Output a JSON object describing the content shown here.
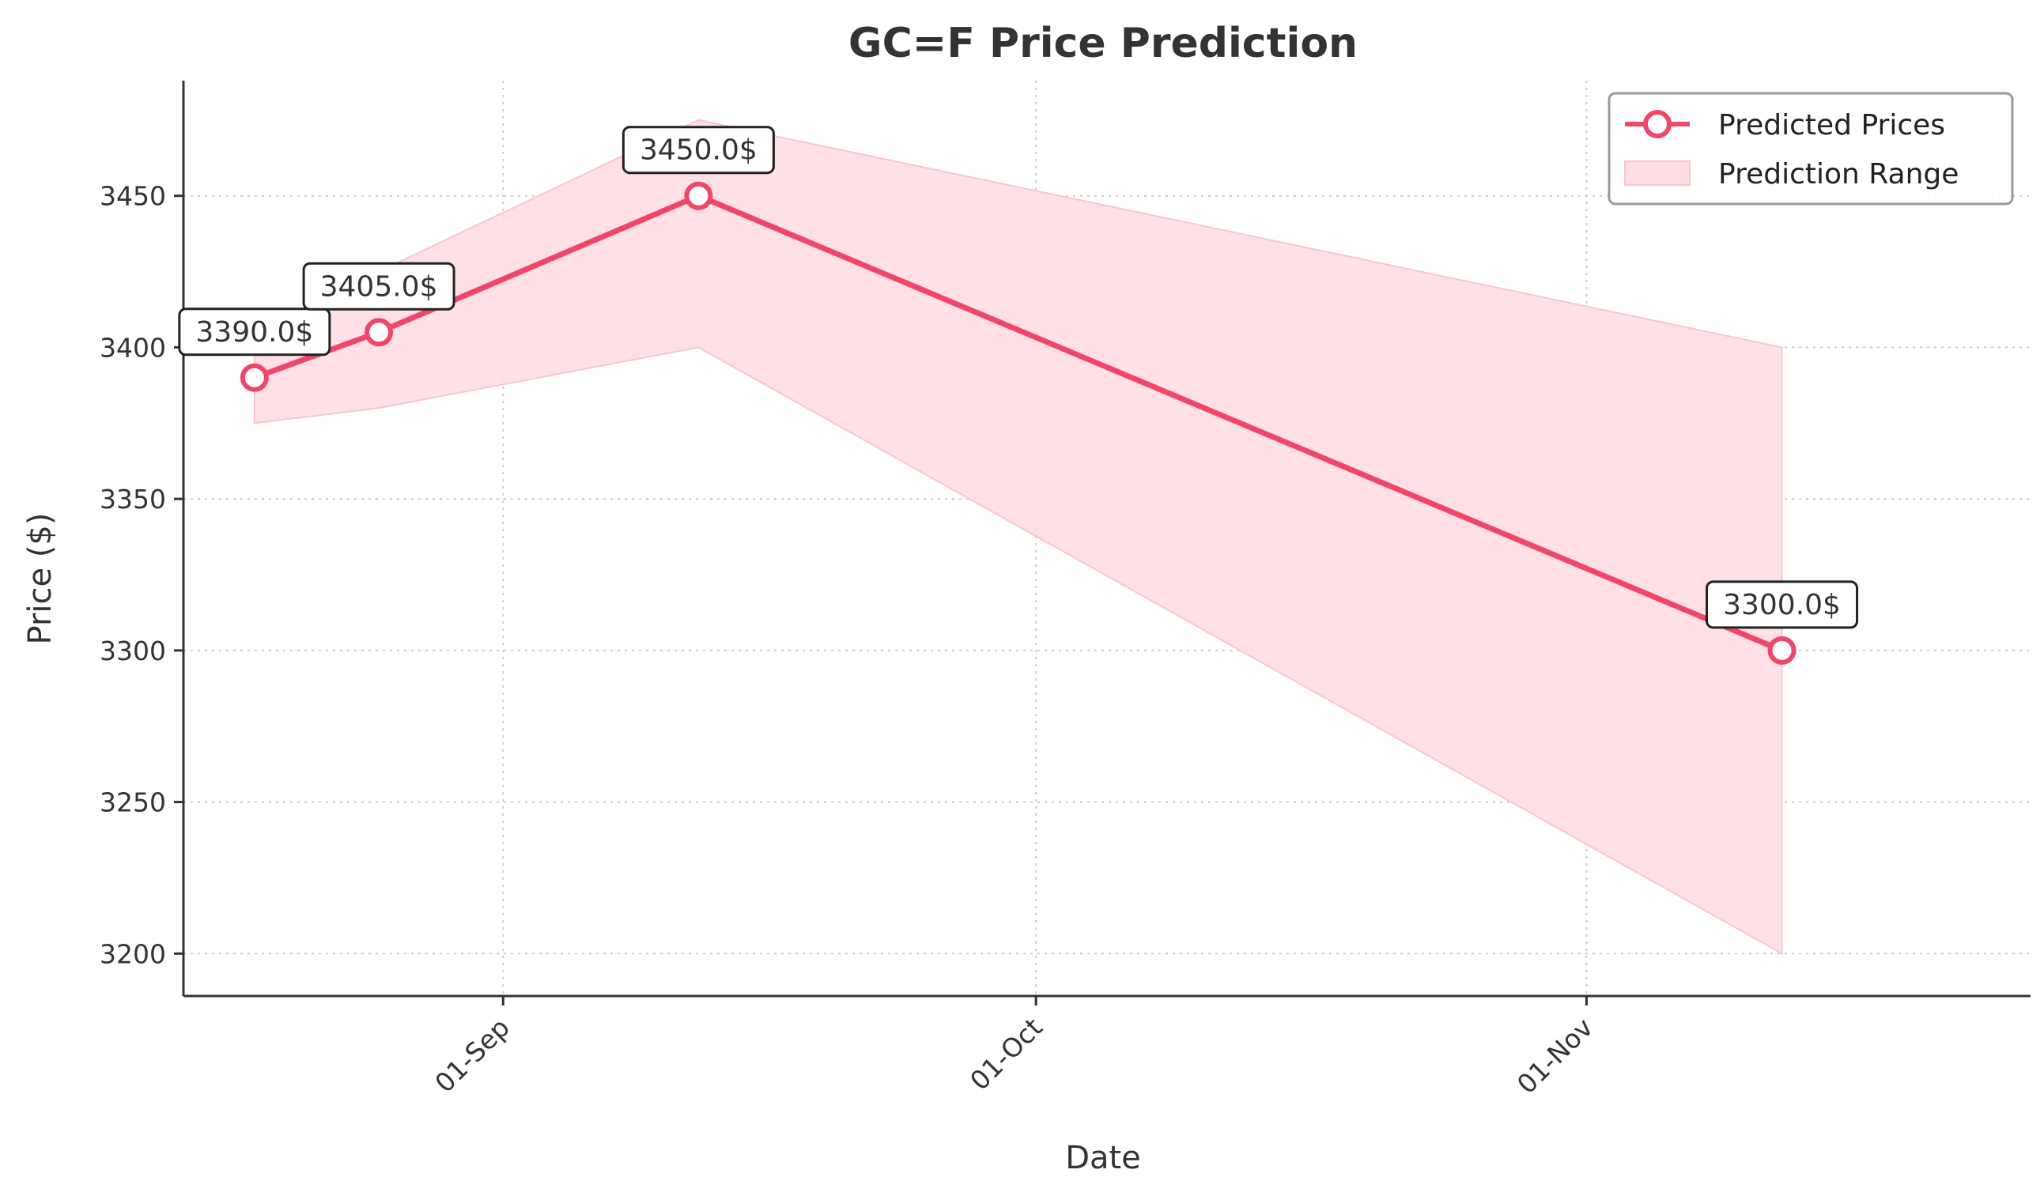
{
  "chart_data": {
    "type": "line",
    "title": "GC=F Price Prediction",
    "xlabel": "Date",
    "ylabel": "Price ($)",
    "x_type": "date",
    "x": [
      "2025-08-18",
      "2025-08-25",
      "2025-09-12",
      "2025-11-12"
    ],
    "x_range": [
      "2025-08-14",
      "2025-11-26"
    ],
    "ylim": [
      3186,
      3488
    ],
    "y_ticks": [
      3200,
      3250,
      3300,
      3350,
      3400,
      3450
    ],
    "x_ticks": [
      {
        "date": "2025-09-01",
        "label": "01-Sep"
      },
      {
        "date": "2025-10-01",
        "label": "01-Oct"
      },
      {
        "date": "2025-11-01",
        "label": "01-Nov"
      }
    ],
    "grid": true,
    "legend_position": "top-right",
    "series": [
      {
        "name": "Predicted Prices",
        "kind": "line",
        "color": "#f0466a",
        "values": [
          3390,
          3405,
          3450,
          3300
        ],
        "annotations": [
          "3390.0$",
          "3405.0$",
          "3450.0$",
          "3300.0$"
        ]
      },
      {
        "name": "Prediction Range",
        "kind": "band",
        "color": "#ffdde3",
        "lower": [
          3375,
          3380,
          3400,
          3200
        ],
        "upper": [
          3405,
          3425,
          3475,
          3400
        ]
      }
    ]
  }
}
